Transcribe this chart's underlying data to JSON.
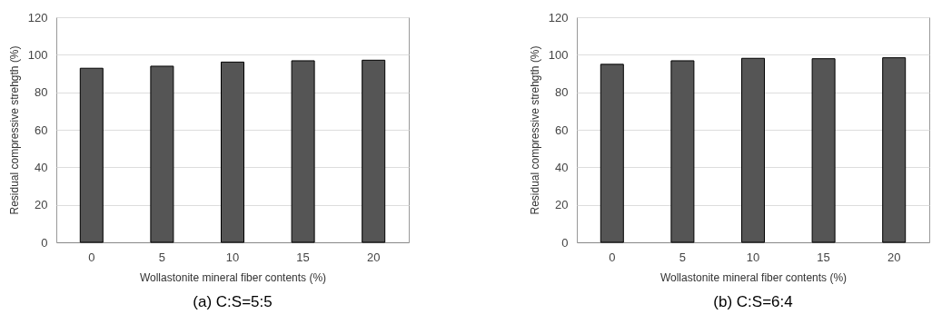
{
  "chart_data": [
    {
      "type": "bar",
      "title": "(a) C:S=5:5",
      "xlabel": "Wollastonite mineral fiber contents (%)",
      "ylabel": "Residual compressive strehgth (%)",
      "categories": [
        "0",
        "5",
        "10",
        "15",
        "20"
      ],
      "values": [
        92.8,
        93.9,
        96.1,
        96.8,
        97.1
      ],
      "color": "#555555",
      "ylim": [
        0,
        120
      ],
      "yticks": [
        0,
        20,
        40,
        60,
        80,
        100,
        120
      ],
      "grid": "y"
    },
    {
      "type": "bar",
      "title": "(b) C:S=6:4",
      "xlabel": "Wollastonite mineral fiber contents (%)",
      "ylabel": "Residual compressive strehgth (%)",
      "categories": [
        "0",
        "5",
        "10",
        "15",
        "20"
      ],
      "values": [
        94.9,
        96.8,
        98.1,
        97.9,
        98.4
      ],
      "color": "#555555",
      "ylim": [
        0,
        120
      ],
      "yticks": [
        0,
        20,
        40,
        60,
        80,
        100,
        120
      ],
      "grid": "y"
    }
  ]
}
